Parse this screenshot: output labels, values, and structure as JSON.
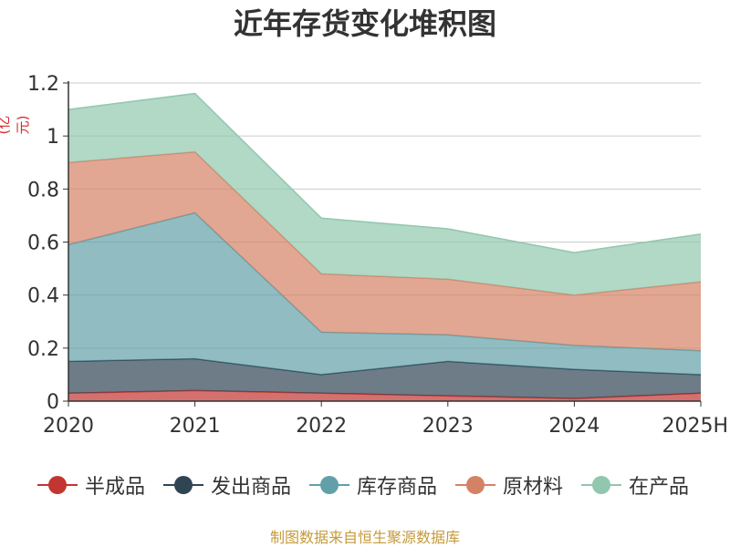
{
  "colors": {
    "半成品": "#c23531",
    "发出商品": "#2f4554",
    "库存商品": "#61a0a8",
    "原材料": "#d48265",
    "在产品": "#91c7ae",
    "source": "#c59a3a",
    "unit": "#d9272a"
  },
  "chart_data": {
    "type": "area",
    "stacked": true,
    "title": "近年存货变化堆积图",
    "ylabel": "(亿元)",
    "categories": [
      "2020",
      "2021",
      "2022",
      "2023",
      "2024",
      "2025H"
    ],
    "y_ticks": [
      "0",
      "0.2",
      "0.4",
      "0.6",
      "0.8",
      "1",
      "1.2"
    ],
    "ylim": [
      0,
      1.2
    ],
    "grid": true,
    "legend_position": "bottom",
    "series": [
      {
        "name": "半成品",
        "values": [
          0.03,
          0.04,
          0.03,
          0.02,
          0.01,
          0.03
        ]
      },
      {
        "name": "发出商品",
        "values": [
          0.12,
          0.12,
          0.07,
          0.13,
          0.11,
          0.07
        ]
      },
      {
        "name": "库存商品",
        "values": [
          0.44,
          0.55,
          0.16,
          0.1,
          0.09,
          0.09
        ]
      },
      {
        "name": "原材料",
        "values": [
          0.31,
          0.23,
          0.22,
          0.21,
          0.19,
          0.26
        ]
      },
      {
        "name": "在产品",
        "values": [
          0.2,
          0.22,
          0.21,
          0.19,
          0.16,
          0.18
        ]
      }
    ]
  },
  "footer": {
    "source": "制图数据来自恒生聚源数据库"
  }
}
